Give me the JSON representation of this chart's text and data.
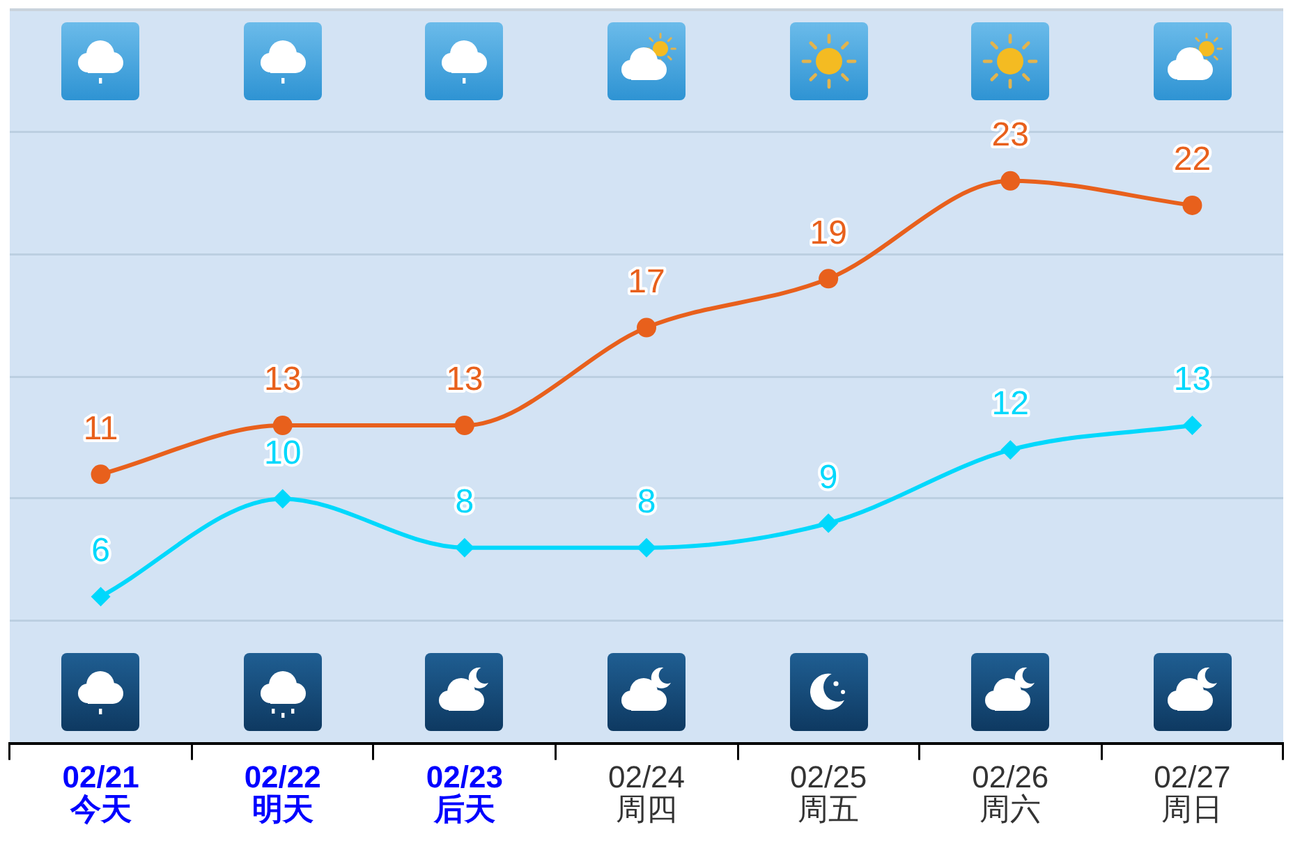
{
  "chart_data": {
    "type": "line",
    "categories": [
      "02/21\n今天",
      "02/22\n明天",
      "02/23\n后天",
      "02/24\n周四",
      "02/25\n周五",
      "02/26\n周六",
      "02/27\n周日"
    ],
    "series": [
      {
        "color": "#e8601c",
        "values": [
          11,
          13,
          13,
          17,
          19,
          23,
          22
        ],
        "marker": "circle"
      },
      {
        "color": "#00d8fc",
        "values": [
          6,
          10,
          8,
          8,
          9,
          12,
          13
        ],
        "marker": "diamond"
      }
    ],
    "ylim": [
      0,
      30
    ],
    "yticks": [
      {
        "value": 5,
        "label": null
      },
      {
        "value": 10,
        "label": null
      },
      {
        "value": 15,
        "label": null
      },
      {
        "value": 20,
        "label": null
      },
      {
        "value": 25,
        "label": null
      }
    ],
    "grid": "y",
    "legend": false,
    "data_labels": true,
    "tick_labels": "x"
  }
}
